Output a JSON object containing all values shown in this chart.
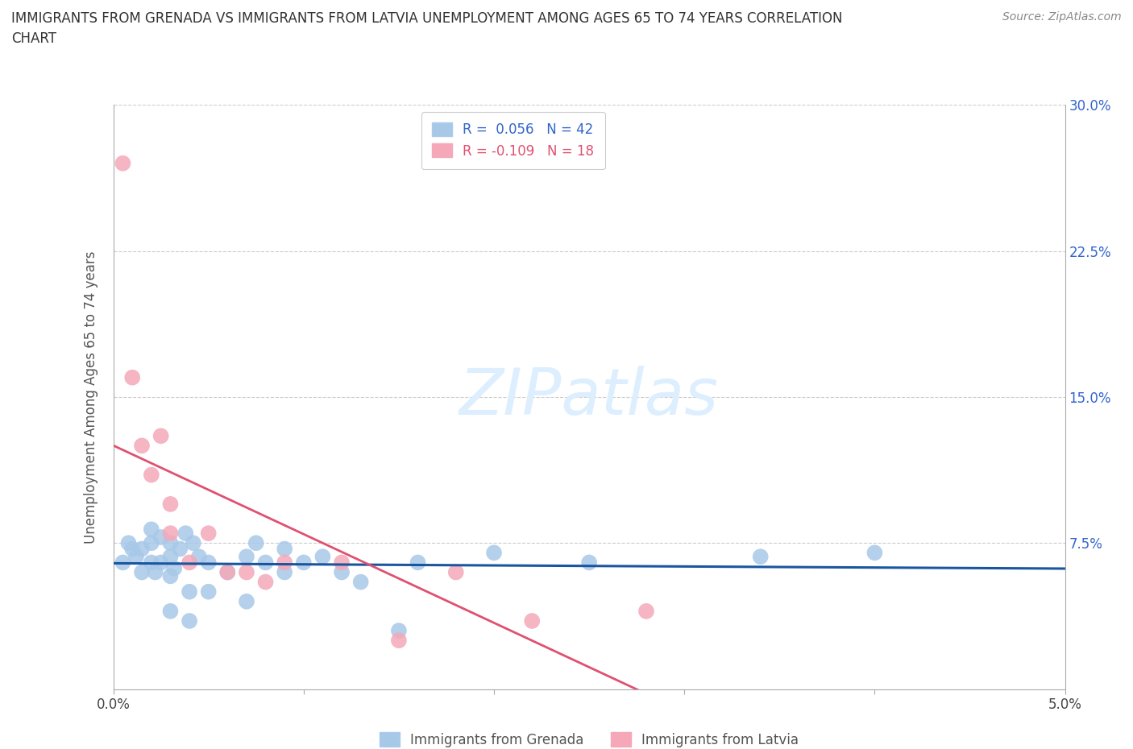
{
  "title": "IMMIGRANTS FROM GRENADA VS IMMIGRANTS FROM LATVIA UNEMPLOYMENT AMONG AGES 65 TO 74 YEARS CORRELATION\nCHART",
  "source": "Source: ZipAtlas.com",
  "ylabel": "Unemployment Among Ages 65 to 74 years",
  "xlim": [
    0.0,
    0.05
  ],
  "ylim": [
    0.0,
    0.3
  ],
  "xtick_positions": [
    0.0,
    0.01,
    0.02,
    0.03,
    0.04,
    0.05
  ],
  "xticklabels": [
    "0.0%",
    "",
    "",
    "",
    "",
    "5.0%"
  ],
  "ytick_positions": [
    0.0,
    0.075,
    0.15,
    0.225,
    0.3
  ],
  "yticklabels_right": [
    "",
    "7.5%",
    "15.0%",
    "22.5%",
    "30.0%"
  ],
  "grenada_R": 0.056,
  "grenada_N": 42,
  "latvia_R": -0.109,
  "latvia_N": 18,
  "legend_label_grenada": "Immigrants from Grenada",
  "legend_label_latvia": "Immigrants from Latvia",
  "color_grenada": "#a8c8e8",
  "color_latvia": "#f4a8b8",
  "line_color_grenada": "#1a56a0",
  "line_color_latvia": "#e05070",
  "right_axis_color": "#3366cc",
  "watermark_color": "#ddeeff",
  "grenada_x": [
    0.0005,
    0.0008,
    0.001,
    0.0012,
    0.0015,
    0.0015,
    0.002,
    0.002,
    0.002,
    0.0022,
    0.0025,
    0.0025,
    0.003,
    0.003,
    0.003,
    0.003,
    0.0032,
    0.0035,
    0.0038,
    0.004,
    0.004,
    0.0042,
    0.0045,
    0.005,
    0.005,
    0.006,
    0.007,
    0.007,
    0.0075,
    0.008,
    0.009,
    0.009,
    0.01,
    0.011,
    0.012,
    0.013,
    0.015,
    0.016,
    0.02,
    0.025,
    0.034,
    0.04
  ],
  "grenada_y": [
    0.065,
    0.075,
    0.072,
    0.068,
    0.06,
    0.072,
    0.065,
    0.075,
    0.082,
    0.06,
    0.078,
    0.065,
    0.04,
    0.058,
    0.068,
    0.075,
    0.062,
    0.072,
    0.08,
    0.035,
    0.05,
    0.075,
    0.068,
    0.05,
    0.065,
    0.06,
    0.068,
    0.045,
    0.075,
    0.065,
    0.06,
    0.072,
    0.065,
    0.068,
    0.06,
    0.055,
    0.03,
    0.065,
    0.07,
    0.065,
    0.068,
    0.07
  ],
  "latvia_x": [
    0.0005,
    0.001,
    0.0015,
    0.002,
    0.0025,
    0.003,
    0.003,
    0.004,
    0.005,
    0.006,
    0.007,
    0.008,
    0.009,
    0.012,
    0.015,
    0.018,
    0.022,
    0.028
  ],
  "latvia_y": [
    0.27,
    0.16,
    0.125,
    0.11,
    0.13,
    0.08,
    0.095,
    0.065,
    0.08,
    0.06,
    0.06,
    0.055,
    0.065,
    0.065,
    0.025,
    0.06,
    0.035,
    0.04
  ],
  "grenada_line_x": [
    0.0,
    0.05
  ],
  "latvia_line_x": [
    0.0,
    0.035
  ]
}
